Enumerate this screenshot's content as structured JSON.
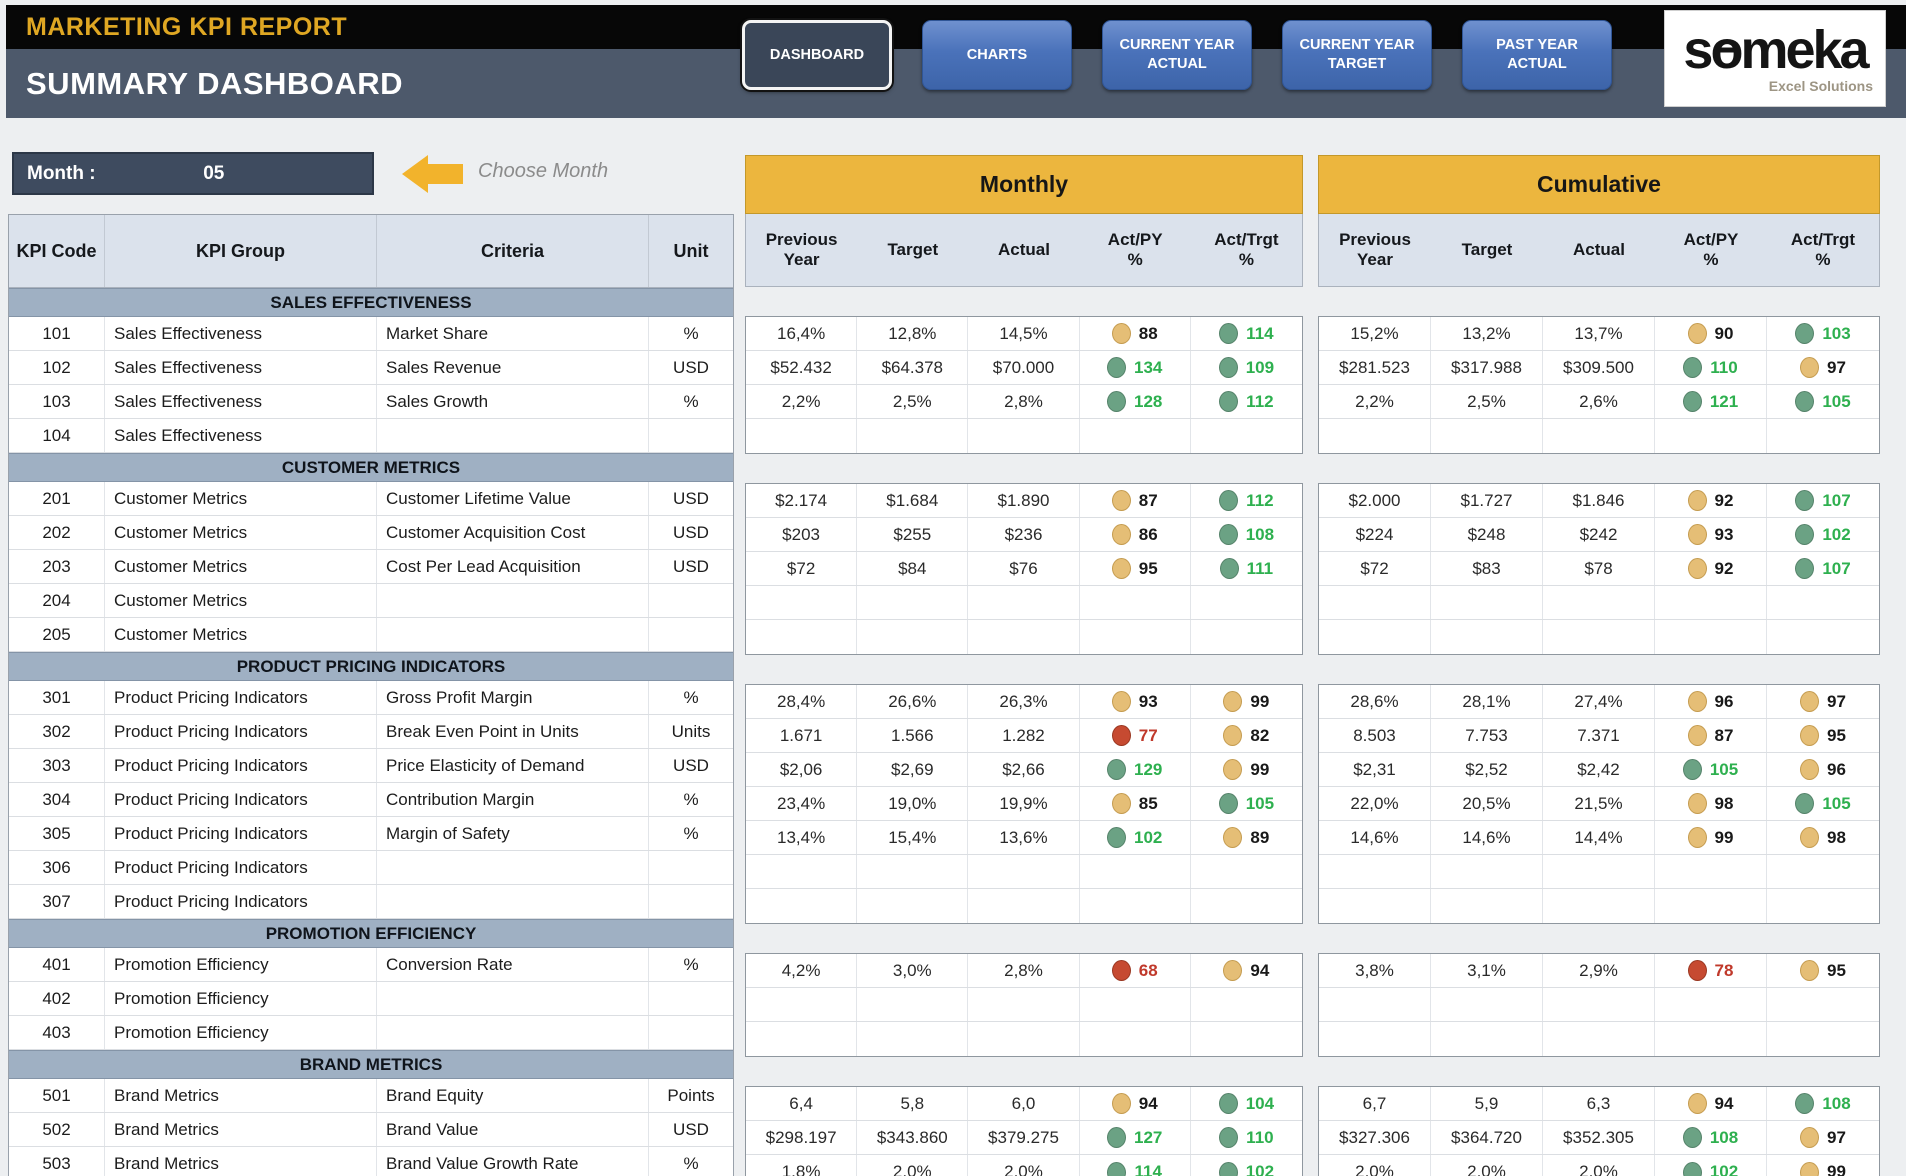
{
  "header": {
    "report_title": "MARKETING KPI REPORT",
    "page_title": "SUMMARY DASHBOARD",
    "nav": [
      {
        "lines": [
          "DASHBOARD"
        ],
        "active": true
      },
      {
        "lines": [
          "CHARTS"
        ],
        "active": false
      },
      {
        "lines": [
          "CURRENT YEAR",
          "ACTUAL"
        ],
        "active": false
      },
      {
        "lines": [
          "CURRENT YEAR",
          "TARGET"
        ],
        "active": false
      },
      {
        "lines": [
          "PAST YEAR",
          "ACTUAL"
        ],
        "active": false
      }
    ],
    "logo": {
      "text": "someka",
      "tagline": "Excel Solutions"
    }
  },
  "month_selector": {
    "label": "Month :",
    "value": "05",
    "hint": "Choose Month"
  },
  "table": {
    "left_headers": [
      "KPI Code",
      "KPI Group",
      "Criteria",
      "Unit"
    ],
    "panel_titles": {
      "monthly": "Monthly",
      "cumulative": "Cumulative"
    },
    "value_headers": [
      "Previous\nYear",
      "Target",
      "Actual",
      "Act/PY\n%",
      "Act/Trgt\n%"
    ],
    "sections": [
      {
        "title": "SALES EFFECTIVENESS",
        "rows": [
          {
            "code": "101",
            "group": "Sales Effectiveness",
            "criteria": "Market Share",
            "unit": "%",
            "m": [
              "16,4%",
              "12,8%",
              "14,5%"
            ],
            "m_ratios": [
              {
                "v": "88",
                "c": "yellow"
              },
              {
                "v": "114",
                "c": "green"
              }
            ],
            "cu": [
              "15,2%",
              "13,2%",
              "13,7%"
            ],
            "cu_ratios": [
              {
                "v": "90",
                "c": "yellow"
              },
              {
                "v": "103",
                "c": "green"
              }
            ]
          },
          {
            "code": "102",
            "group": "Sales Effectiveness",
            "criteria": "Sales Revenue",
            "unit": "USD",
            "m": [
              "$52.432",
              "$64.378",
              "$70.000"
            ],
            "m_ratios": [
              {
                "v": "134",
                "c": "green"
              },
              {
                "v": "109",
                "c": "green"
              }
            ],
            "cu": [
              "$281.523",
              "$317.988",
              "$309.500"
            ],
            "cu_ratios": [
              {
                "v": "110",
                "c": "green"
              },
              {
                "v": "97",
                "c": "yellow"
              }
            ]
          },
          {
            "code": "103",
            "group": "Sales Effectiveness",
            "criteria": "Sales Growth",
            "unit": "%",
            "m": [
              "2,2%",
              "2,5%",
              "2,8%"
            ],
            "m_ratios": [
              {
                "v": "128",
                "c": "green"
              },
              {
                "v": "112",
                "c": "green"
              }
            ],
            "cu": [
              "2,2%",
              "2,5%",
              "2,6%"
            ],
            "cu_ratios": [
              {
                "v": "121",
                "c": "green"
              },
              {
                "v": "105",
                "c": "green"
              }
            ]
          },
          {
            "code": "104",
            "group": "Sales Effectiveness",
            "criteria": "",
            "unit": "",
            "m": null,
            "m_ratios": null,
            "cu": null,
            "cu_ratios": null
          }
        ]
      },
      {
        "title": "CUSTOMER METRICS",
        "rows": [
          {
            "code": "201",
            "group": "Customer Metrics",
            "criteria": "Customer Lifetime Value",
            "unit": "USD",
            "m": [
              "$2.174",
              "$1.684",
              "$1.890"
            ],
            "m_ratios": [
              {
                "v": "87",
                "c": "yellow"
              },
              {
                "v": "112",
                "c": "green"
              }
            ],
            "cu": [
              "$2.000",
              "$1.727",
              "$1.846"
            ],
            "cu_ratios": [
              {
                "v": "92",
                "c": "yellow"
              },
              {
                "v": "107",
                "c": "green"
              }
            ]
          },
          {
            "code": "202",
            "group": "Customer Metrics",
            "criteria": "Customer Acquisition Cost",
            "unit": "USD",
            "m": [
              "$203",
              "$255",
              "$236"
            ],
            "m_ratios": [
              {
                "v": "86",
                "c": "yellow"
              },
              {
                "v": "108",
                "c": "green"
              }
            ],
            "cu": [
              "$224",
              "$248",
              "$242"
            ],
            "cu_ratios": [
              {
                "v": "93",
                "c": "yellow"
              },
              {
                "v": "102",
                "c": "green"
              }
            ]
          },
          {
            "code": "203",
            "group": "Customer Metrics",
            "criteria": "Cost Per Lead Acquisition",
            "unit": "USD",
            "m": [
              "$72",
              "$84",
              "$76"
            ],
            "m_ratios": [
              {
                "v": "95",
                "c": "yellow"
              },
              {
                "v": "111",
                "c": "green"
              }
            ],
            "cu": [
              "$72",
              "$83",
              "$78"
            ],
            "cu_ratios": [
              {
                "v": "92",
                "c": "yellow"
              },
              {
                "v": "107",
                "c": "green"
              }
            ]
          },
          {
            "code": "204",
            "group": "Customer Metrics",
            "criteria": "",
            "unit": "",
            "m": null,
            "m_ratios": null,
            "cu": null,
            "cu_ratios": null
          },
          {
            "code": "205",
            "group": "Customer Metrics",
            "criteria": "",
            "unit": "",
            "m": null,
            "m_ratios": null,
            "cu": null,
            "cu_ratios": null
          }
        ]
      },
      {
        "title": "PRODUCT PRICING INDICATORS",
        "rows": [
          {
            "code": "301",
            "group": "Product Pricing Indicators",
            "criteria": "Gross Profit Margin",
            "unit": "%",
            "m": [
              "28,4%",
              "26,6%",
              "26,3%"
            ],
            "m_ratios": [
              {
                "v": "93",
                "c": "yellow"
              },
              {
                "v": "99",
                "c": "yellow"
              }
            ],
            "cu": [
              "28,6%",
              "28,1%",
              "27,4%"
            ],
            "cu_ratios": [
              {
                "v": "96",
                "c": "yellow"
              },
              {
                "v": "97",
                "c": "yellow"
              }
            ]
          },
          {
            "code": "302",
            "group": "Product Pricing Indicators",
            "criteria": "Break Even Point in Units",
            "unit": "Units",
            "m": [
              "1.671",
              "1.566",
              "1.282"
            ],
            "m_ratios": [
              {
                "v": "77",
                "c": "red"
              },
              {
                "v": "82",
                "c": "yellow"
              }
            ],
            "cu": [
              "8.503",
              "7.753",
              "7.371"
            ],
            "cu_ratios": [
              {
                "v": "87",
                "c": "yellow"
              },
              {
                "v": "95",
                "c": "yellow"
              }
            ]
          },
          {
            "code": "303",
            "group": "Product Pricing Indicators",
            "criteria": "Price Elasticity of Demand",
            "unit": "USD",
            "m": [
              "$2,06",
              "$2,69",
              "$2,66"
            ],
            "m_ratios": [
              {
                "v": "129",
                "c": "green"
              },
              {
                "v": "99",
                "c": "yellow"
              }
            ],
            "cu": [
              "$2,31",
              "$2,52",
              "$2,42"
            ],
            "cu_ratios": [
              {
                "v": "105",
                "c": "green"
              },
              {
                "v": "96",
                "c": "yellow"
              }
            ]
          },
          {
            "code": "304",
            "group": "Product Pricing Indicators",
            "criteria": "Contribution Margin",
            "unit": "%",
            "m": [
              "23,4%",
              "19,0%",
              "19,9%"
            ],
            "m_ratios": [
              {
                "v": "85",
                "c": "yellow"
              },
              {
                "v": "105",
                "c": "green"
              }
            ],
            "cu": [
              "22,0%",
              "20,5%",
              "21,5%"
            ],
            "cu_ratios": [
              {
                "v": "98",
                "c": "yellow"
              },
              {
                "v": "105",
                "c": "green"
              }
            ]
          },
          {
            "code": "305",
            "group": "Product Pricing Indicators",
            "criteria": "Margin of Safety",
            "unit": "%",
            "m": [
              "13,4%",
              "15,4%",
              "13,6%"
            ],
            "m_ratios": [
              {
                "v": "102",
                "c": "green"
              },
              {
                "v": "89",
                "c": "yellow"
              }
            ],
            "cu": [
              "14,6%",
              "14,6%",
              "14,4%"
            ],
            "cu_ratios": [
              {
                "v": "99",
                "c": "yellow"
              },
              {
                "v": "98",
                "c": "yellow"
              }
            ]
          },
          {
            "code": "306",
            "group": "Product Pricing Indicators",
            "criteria": "",
            "unit": "",
            "m": null,
            "m_ratios": null,
            "cu": null,
            "cu_ratios": null
          },
          {
            "code": "307",
            "group": "Product Pricing Indicators",
            "criteria": "",
            "unit": "",
            "m": null,
            "m_ratios": null,
            "cu": null,
            "cu_ratios": null
          }
        ]
      },
      {
        "title": "PROMOTION EFFICIENCY",
        "rows": [
          {
            "code": "401",
            "group": "Promotion Efficiency",
            "criteria": "Conversion Rate",
            "unit": "%",
            "m": [
              "4,2%",
              "3,0%",
              "2,8%"
            ],
            "m_ratios": [
              {
                "v": "68",
                "c": "red"
              },
              {
                "v": "94",
                "c": "yellow"
              }
            ],
            "cu": [
              "3,8%",
              "3,1%",
              "2,9%"
            ],
            "cu_ratios": [
              {
                "v": "78",
                "c": "red"
              },
              {
                "v": "95",
                "c": "yellow"
              }
            ]
          },
          {
            "code": "402",
            "group": "Promotion Efficiency",
            "criteria": "",
            "unit": "",
            "m": null,
            "m_ratios": null,
            "cu": null,
            "cu_ratios": null
          },
          {
            "code": "403",
            "group": "Promotion Efficiency",
            "criteria": "",
            "unit": "",
            "m": null,
            "m_ratios": null,
            "cu": null,
            "cu_ratios": null
          }
        ]
      },
      {
        "title": "BRAND METRICS",
        "rows": [
          {
            "code": "501",
            "group": "Brand Metrics",
            "criteria": "Brand Equity",
            "unit": "Points",
            "m": [
              "6,4",
              "5,8",
              "6,0"
            ],
            "m_ratios": [
              {
                "v": "94",
                "c": "yellow"
              },
              {
                "v": "104",
                "c": "green"
              }
            ],
            "cu": [
              "6,7",
              "5,9",
              "6,3"
            ],
            "cu_ratios": [
              {
                "v": "94",
                "c": "yellow"
              },
              {
                "v": "108",
                "c": "green"
              }
            ]
          },
          {
            "code": "502",
            "group": "Brand Metrics",
            "criteria": "Brand Value",
            "unit": "USD",
            "m": [
              "$298.197",
              "$343.860",
              "$379.275"
            ],
            "m_ratios": [
              {
                "v": "127",
                "c": "green"
              },
              {
                "v": "110",
                "c": "green"
              }
            ],
            "cu": [
              "$327.306",
              "$364.720",
              "$352.305"
            ],
            "cu_ratios": [
              {
                "v": "108",
                "c": "green"
              },
              {
                "v": "97",
                "c": "yellow"
              }
            ]
          },
          {
            "code": "503",
            "group": "Brand Metrics",
            "criteria": "Brand Value Growth Rate",
            "unit": "%",
            "m": [
              "1,8%",
              "2,0%",
              "2,0%"
            ],
            "m_ratios": [
              {
                "v": "114",
                "c": "green"
              },
              {
                "v": "102",
                "c": "green"
              }
            ],
            "cu": [
              "2,0%",
              "2,0%",
              "2,0%"
            ],
            "cu_ratios": [
              {
                "v": "102",
                "c": "green"
              },
              {
                "v": "99",
                "c": "yellow"
              }
            ]
          }
        ]
      }
    ]
  },
  "colors": {
    "accent_gold": "#ecb63e",
    "bar_slate": "#4d596b",
    "nav_blue": "#4a72ba",
    "dot_green": "#6ba284",
    "dot_yellow": "#e5be76",
    "dot_red": "#c64a31",
    "num_green": "#2eb04f",
    "num_red": "#c0392b"
  }
}
